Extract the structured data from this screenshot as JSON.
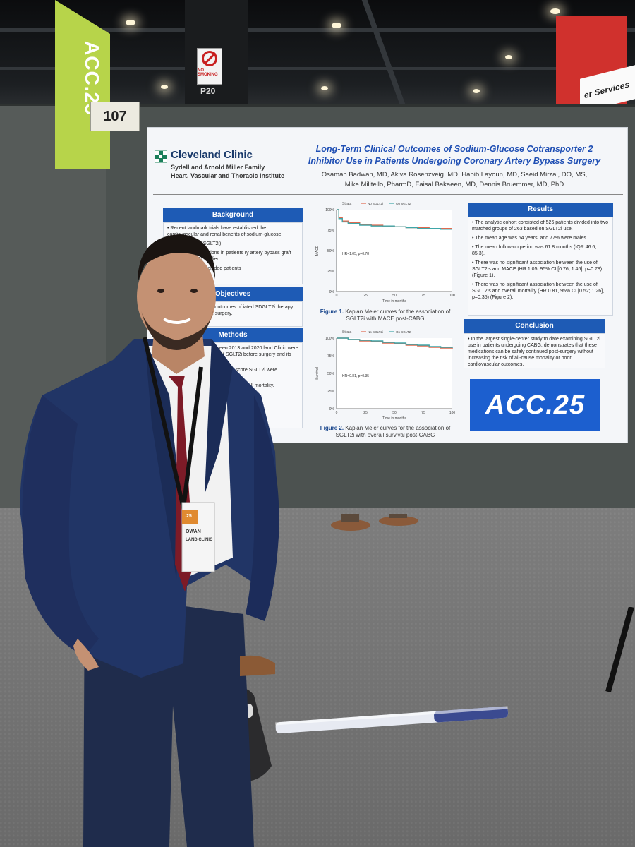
{
  "signage": {
    "acc_sign": "ACC.25",
    "board_number": "107",
    "no_smoking": "NO SMOKING",
    "pillar_code": "P20",
    "booth_sign": "er Services"
  },
  "poster": {
    "logo_name": "Cleveland Clinic",
    "logo_sub1": "Sydell and Arnold Miller Family",
    "logo_sub2": "Heart, Vascular and Thoracic Institute",
    "title_line1": "Long-Term Clinical Outcomes of Sodium-Glucose Cotransporter 2",
    "title_line2": "Inhibitor Use in Patients Undergoing Coronary Artery Bypass Surgery",
    "authors_line1": "Osamah Badwan, MD, Akiva Rosenzveig, MD, Habib Layoun, MD, Saeid Mirzai, DO, MS,",
    "authors_line2": "Mike Militello, PharmD, Faisal Bakaeen, MD, Dennis Bruemmer, MD, PhD",
    "background": {
      "heading": "Background",
      "bullets": [
        "Recent landmark trials have established the cardiovascular and renal benefits of sodium-glucose",
        "er 2 inhibitors (SGLT2i)",
        "s of these medications in patients ry artery bypass graft surgery (CABG) studied.",
        "SGLT2is have excluded patients"
      ]
    },
    "objectives": {
      "heading": "Objectives",
      "bullets": [
        "to assess long-term outcomes of iated SDGLT2i therapy before ntinued it post-surgery."
      ]
    },
    "methods": {
      "heading": "Methods",
      "bullets": [
        "ndergoing CABG between 2013 and 2020 land Clinic were included and grouped e of SGLT2i before surgery and its out the follow-up period.",
        "eatment post-surgery pensity score SGLT2i were according to age, bidities.",
        "ed to determine major adverse overall mortality."
      ]
    },
    "results": {
      "heading": "Results",
      "bullets": [
        "The analytic cohort consisted of 526 patients divided into two matched groups of 263 based on SGLT2i use.",
        "The mean age was 64 years, and 77% were males.",
        "The mean follow-up period was 61.8 months (IQR 46.6, 85.3).",
        "There was no significant association between the use of SGLT2is and MACE (HR 1.05, 95% CI [0.76; 1.46], p=0.78) (Figure 1).",
        "There was no significant association between the use of SGLT2is and overall mortality (HR 0.81, 95% CI [0.52; 1.26], p=0.35) (Figure 2)."
      ]
    },
    "conclusion": {
      "heading": "Conclusion",
      "bullets": [
        "In the largest single-center study to date examining SGLT2i use in patients undergoing CABG, demonstrates that these medications can be safely continued post-surgery without increasing the risk of all-cause mortality or poor cardiovascular outcomes."
      ]
    },
    "fig1_caption_bold": "Figure 1.",
    "fig1_caption": "Kaplan Meier curves for the association of SGLT2i with MACE post-CABG",
    "fig2_caption_bold": "Figure 2.",
    "fig2_caption": "Kaplan Meier curves for the association of SGLT2i with overall survival post-CABG",
    "acc_logo": "ACC.25"
  },
  "badge": {
    "logo": ".25",
    "name_partial": "OWAN",
    "org_partial": "LAND CLINIC"
  },
  "chart_data": [
    {
      "type": "line",
      "title": "",
      "legend_label": "Strata",
      "legend": [
        "No SGLT2i",
        "On SGLT2i"
      ],
      "xlabel": "Time in months",
      "ylabel": "MACE",
      "x_ticks": [
        "0",
        "25",
        "50",
        "75",
        "100"
      ],
      "y_ticks": [
        "0%",
        "25%",
        "50%",
        "75%",
        "100%"
      ],
      "xlim": [
        0,
        100
      ],
      "ylim": [
        0,
        100
      ],
      "annotation": "HR=1.05, p=0.78",
      "series": [
        {
          "name": "No SGLT2i",
          "color": "#e0694f",
          "x": [
            0,
            2,
            5,
            10,
            20,
            30,
            40,
            50,
            60,
            70,
            80,
            90,
            100
          ],
          "y": [
            100,
            90,
            86,
            84,
            82,
            81,
            80,
            79,
            78,
            78,
            77,
            77,
            77
          ]
        },
        {
          "name": "On SGLT2i",
          "color": "#3fa6a8",
          "x": [
            0,
            2,
            5,
            10,
            20,
            30,
            40,
            50,
            60,
            70,
            80,
            90,
            100
          ],
          "y": [
            100,
            89,
            85,
            83,
            81,
            80,
            80,
            79,
            78,
            77,
            77,
            76,
            76
          ]
        }
      ]
    },
    {
      "type": "line",
      "title": "",
      "legend_label": "Strata",
      "legend": [
        "No SGLT2i",
        "On SGLT2i"
      ],
      "xlabel": "Time in months",
      "ylabel": "Survival",
      "x_ticks": [
        "0",
        "25",
        "50",
        "75",
        "100"
      ],
      "y_ticks": [
        "0%",
        "25%",
        "50%",
        "75%",
        "100%"
      ],
      "xlim": [
        0,
        100
      ],
      "ylim": [
        0,
        100
      ],
      "annotation": "HR=0.81, p=0.35",
      "series": [
        {
          "name": "No SGLT2i",
          "color": "#e0694f",
          "x": [
            0,
            10,
            20,
            30,
            40,
            50,
            60,
            70,
            80,
            90,
            100
          ],
          "y": [
            100,
            98,
            96,
            95,
            93,
            92,
            90,
            89,
            87,
            86,
            85
          ]
        },
        {
          "name": "On SGLT2i",
          "color": "#3fa6a8",
          "x": [
            0,
            10,
            20,
            30,
            40,
            50,
            60,
            70,
            80,
            90,
            100
          ],
          "y": [
            100,
            98,
            97,
            96,
            94,
            93,
            91,
            90,
            88,
            87,
            86
          ]
        }
      ]
    }
  ]
}
